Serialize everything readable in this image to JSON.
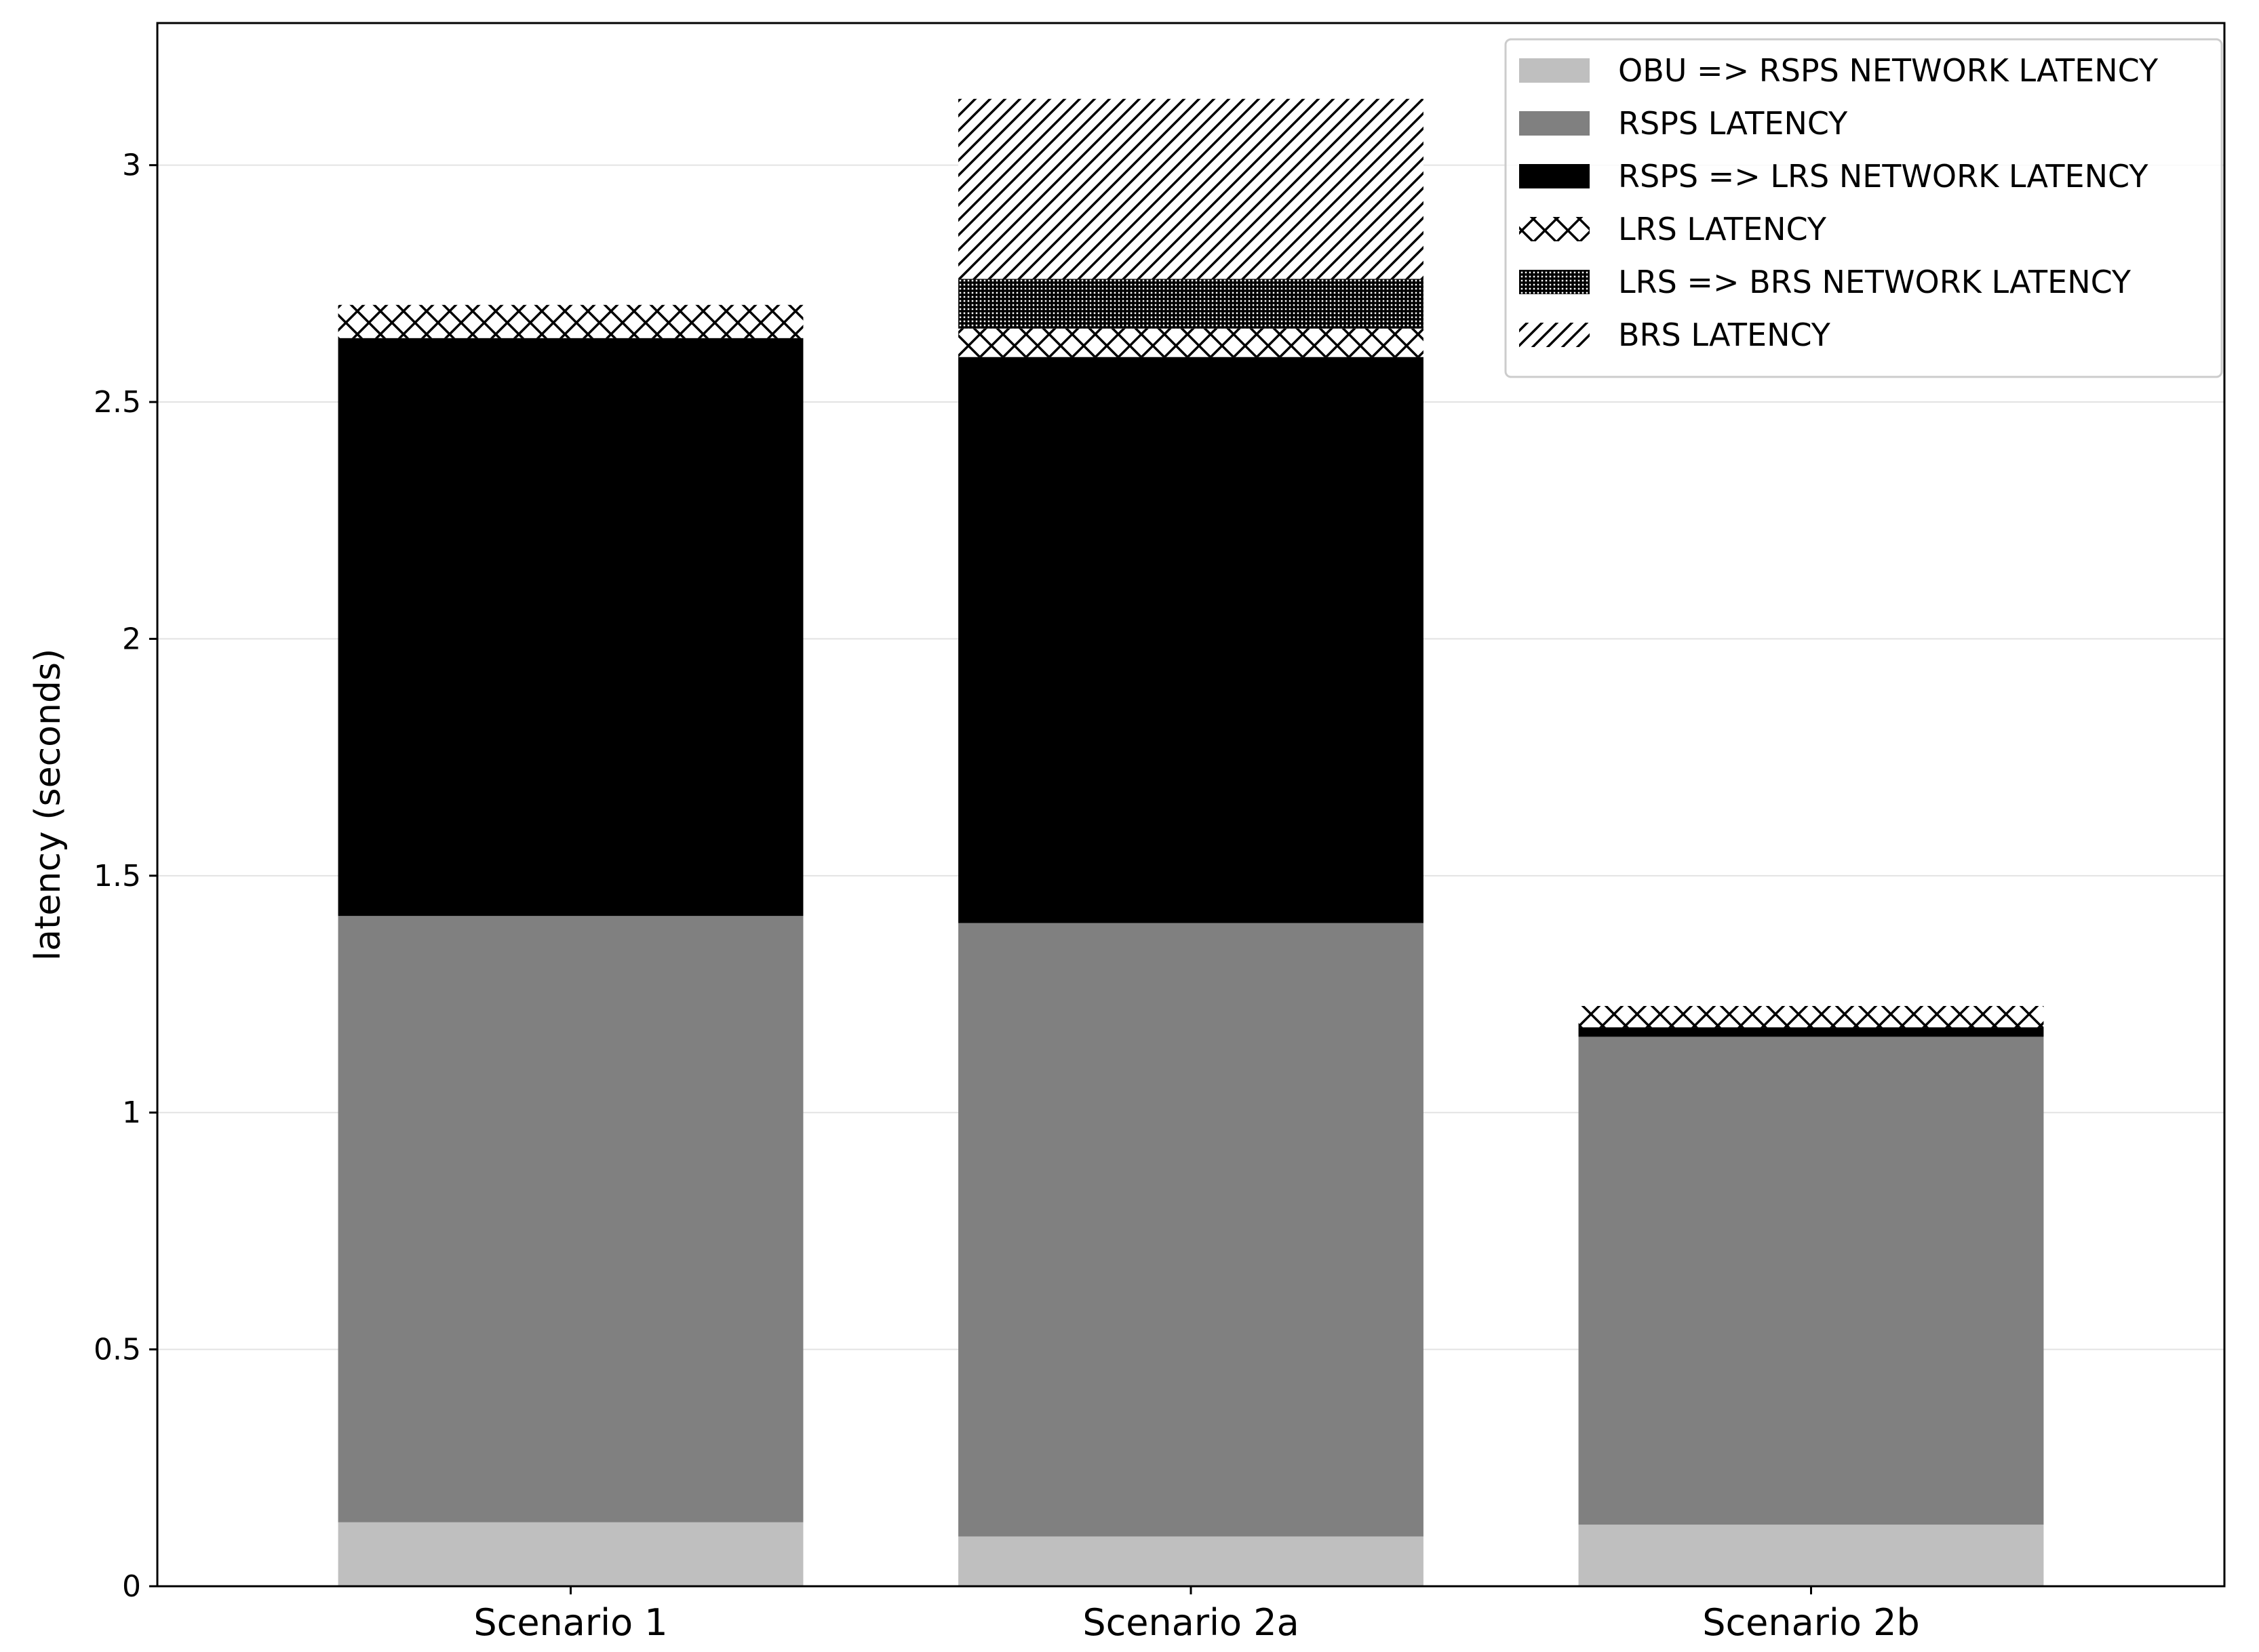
{
  "chart_data": {
    "type": "bar",
    "stacked": true,
    "title": "",
    "xlabel": "",
    "ylabel": "latency (seconds)",
    "ylim": [
      0,
      3.3
    ],
    "yticks": [
      0,
      0.5,
      1,
      1.5,
      2,
      2.5,
      3
    ],
    "ytick_labels": [
      "0",
      "0.5",
      "1",
      "1.5",
      "2",
      "2.5",
      "3"
    ],
    "grid": "horizontal",
    "legend_position": "top-right",
    "categories": [
      "Scenario 1",
      "Scenario 2a",
      "Scenario 2b"
    ],
    "series": [
      {
        "name": "OBU => RSPS NETWORK LATENCY",
        "values": [
          0.135,
          0.105,
          0.13
        ],
        "color": "#bfbfbf",
        "pattern": "solid"
      },
      {
        "name": "RSPS LATENCY",
        "values": [
          1.28,
          1.295,
          1.03
        ],
        "color": "#808080",
        "pattern": "solid"
      },
      {
        "name": "RSPS => LRS NETWORK LATENCY",
        "values": [
          1.22,
          1.195,
          0.02
        ],
        "color": "#000000",
        "pattern": "solid"
      },
      {
        "name": "LRS LATENCY",
        "values": [
          0.07,
          0.06,
          0.045
        ],
        "color": "#ffffff",
        "pattern": "crosshatch"
      },
      {
        "name": "LRS => BRS NETWORK LATENCY",
        "values": [
          0,
          0.105,
          0
        ],
        "color": "#ffffff",
        "pattern": "grid"
      },
      {
        "name": "BRS LATENCY",
        "values": [
          0,
          0.38,
          0
        ],
        "color": "#ffffff",
        "pattern": "diagonal"
      }
    ]
  }
}
